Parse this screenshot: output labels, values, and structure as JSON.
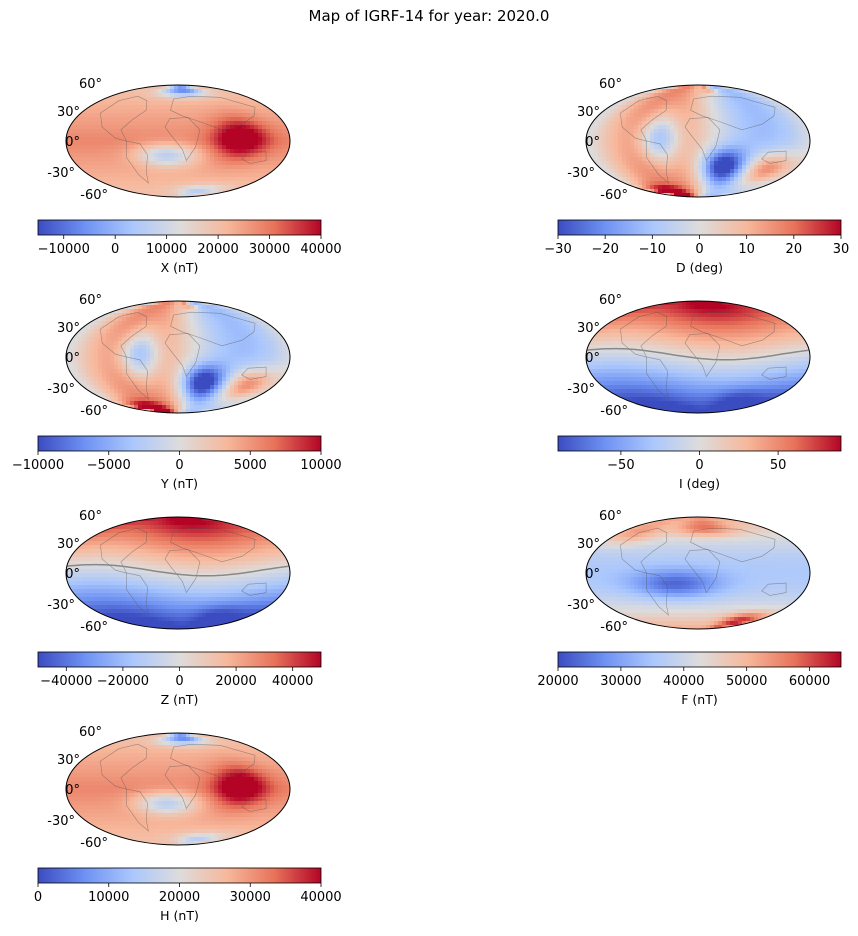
{
  "title": "Map of IGRF-14 for year: 2020.0",
  "lat_labels": [
    "60°",
    "30°",
    "0°",
    "-30°",
    "-60°"
  ],
  "colormap": {
    "name": "coolwarm",
    "stops": [
      "#3b4cc0",
      "#6f92f3",
      "#aac7fd",
      "#dddcdc",
      "#f7b89c",
      "#e7745b",
      "#b40426"
    ]
  },
  "coastline_color": "#555555",
  "equator_line_color": "#888888",
  "panels": [
    {
      "id": "X",
      "label": "X (nT)",
      "range": [
        -15000,
        40000
      ],
      "ticks": [
        -10000,
        0,
        10000,
        20000,
        30000,
        40000
      ],
      "tick_labels": [
        "−10000",
        "0",
        "10000",
        "20000",
        "30000",
        "40000"
      ],
      "pattern": "horizontal"
    },
    {
      "id": "D",
      "label": "D (deg)",
      "range": [
        -30,
        30
      ],
      "ticks": [
        -30,
        -20,
        -10,
        0,
        10,
        20,
        30
      ],
      "tick_labels": [
        "−30",
        "−20",
        "−10",
        "0",
        "10",
        "20",
        "30"
      ],
      "pattern": "declination"
    },
    {
      "id": "Y",
      "label": "Y (nT)",
      "range": [
        -10000,
        10000
      ],
      "ticks": [
        -10000,
        -5000,
        0,
        5000,
        10000
      ],
      "tick_labels": [
        "−10000",
        "−5000",
        "0",
        "5000",
        "10000"
      ],
      "pattern": "declination"
    },
    {
      "id": "I",
      "label": "I (deg)",
      "range": [
        -90,
        90
      ],
      "ticks": [
        -50,
        0,
        50
      ],
      "tick_labels": [
        "−50",
        "0",
        "50"
      ],
      "pattern": "inclination",
      "dip_equator": true
    },
    {
      "id": "Z",
      "label": "Z (nT)",
      "range": [
        -50000,
        50000
      ],
      "ticks": [
        -40000,
        -20000,
        0,
        20000,
        40000
      ],
      "tick_labels": [
        "−40000",
        "−20000",
        "0",
        "20000",
        "40000"
      ],
      "pattern": "inclination",
      "dip_equator": true
    },
    {
      "id": "F",
      "label": "F (nT)",
      "range": [
        20000,
        65000
      ],
      "ticks": [
        20000,
        30000,
        40000,
        50000,
        60000
      ],
      "tick_labels": [
        "20000",
        "30000",
        "40000",
        "50000",
        "60000"
      ],
      "pattern": "total"
    },
    {
      "id": "H",
      "label": "H (nT)",
      "range": [
        0,
        40000
      ],
      "ticks": [
        0,
        10000,
        20000,
        30000,
        40000
      ],
      "tick_labels": [
        "0",
        "10000",
        "20000",
        "30000",
        "40000"
      ],
      "pattern": "horizontal"
    }
  ]
}
